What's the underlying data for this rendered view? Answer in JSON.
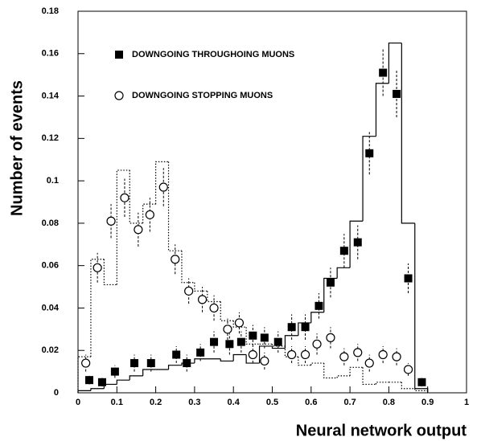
{
  "chart_data": {
    "type": "scatter",
    "x_label": "Neural network output",
    "y_label": "Number of events",
    "xlim": [
      0,
      1
    ],
    "ylim": [
      0,
      0.18
    ],
    "xticks": [
      0,
      0.1,
      0.2,
      0.3,
      0.4,
      0.5,
      0.6,
      0.7,
      0.8,
      0.9,
      1
    ],
    "yticks": [
      0,
      0.02,
      0.04,
      0.06,
      0.08,
      0.1,
      0.12,
      0.14,
      0.16,
      0.18
    ],
    "series": [
      {
        "name": "DOWNGOING THROUGHOING MUONS",
        "marker": "filled-square",
        "color": "#000000",
        "x": [
          0.029,
          0.062,
          0.095,
          0.145,
          0.188,
          0.253,
          0.28,
          0.315,
          0.35,
          0.39,
          0.42,
          0.45,
          0.48,
          0.515,
          0.55,
          0.585,
          0.62,
          0.65,
          0.685,
          0.72,
          0.75,
          0.785,
          0.82,
          0.85,
          0.885
        ],
        "values": [
          0.006,
          0.005,
          0.01,
          0.014,
          0.014,
          0.018,
          0.014,
          0.019,
          0.024,
          0.023,
          0.024,
          0.027,
          0.026,
          0.024,
          0.031,
          0.031,
          0.041,
          0.052,
          0.067,
          0.071,
          0.113,
          0.151,
          0.141,
          0.054,
          0.005
        ],
        "errors": [
          0.002,
          0.002,
          0.003,
          0.004,
          0.004,
          0.004,
          0.004,
          0.004,
          0.005,
          0.005,
          0.005,
          0.005,
          0.005,
          0.005,
          0.006,
          0.006,
          0.006,
          0.007,
          0.008,
          0.008,
          0.01,
          0.011,
          0.011,
          0.007,
          0.002
        ]
      },
      {
        "name": "DOWNGOING STOPPING MUONS",
        "marker": "open-circle",
        "color": "#000000",
        "x": [
          0.02,
          0.05,
          0.085,
          0.12,
          0.155,
          0.185,
          0.22,
          0.25,
          0.285,
          0.32,
          0.35,
          0.385,
          0.415,
          0.45,
          0.48,
          0.55,
          0.585,
          0.615,
          0.65,
          0.685,
          0.72,
          0.75,
          0.785,
          0.82,
          0.85
        ],
        "values": [
          0.014,
          0.059,
          0.081,
          0.092,
          0.077,
          0.084,
          0.097,
          0.063,
          0.048,
          0.044,
          0.04,
          0.03,
          0.033,
          0.018,
          0.015,
          0.018,
          0.018,
          0.023,
          0.026,
          0.017,
          0.019,
          0.014,
          0.018,
          0.017,
          0.011
        ],
        "errors": [
          0.004,
          0.007,
          0.008,
          0.009,
          0.008,
          0.008,
          0.009,
          0.007,
          0.006,
          0.006,
          0.006,
          0.005,
          0.005,
          0.004,
          0.004,
          0.004,
          0.004,
          0.005,
          0.005,
          0.004,
          0.004,
          0.004,
          0.004,
          0.004,
          0.003
        ]
      }
    ],
    "histograms": [
      {
        "style": "solid",
        "color": "#000000",
        "bins": [
          0,
          0.033,
          0.067,
          0.1,
          0.133,
          0.167,
          0.2,
          0.233,
          0.267,
          0.3,
          0.333,
          0.367,
          0.4,
          0.433,
          0.467,
          0.5,
          0.533,
          0.567,
          0.6,
          0.633,
          0.667,
          0.7,
          0.733,
          0.767,
          0.8,
          0.833,
          0.867,
          0.9
        ],
        "counts": [
          0.001,
          0.002,
          0.004,
          0.006,
          0.008,
          0.011,
          0.011,
          0.013,
          0.014,
          0.016,
          0.016,
          0.015,
          0.018,
          0.014,
          0.022,
          0.021,
          0.027,
          0.033,
          0.038,
          0.054,
          0.059,
          0.081,
          0.121,
          0.146,
          0.165,
          0.08,
          0.002
        ]
      },
      {
        "style": "dotted",
        "color": "#000000",
        "bins": [
          0,
          0.033,
          0.067,
          0.1,
          0.133,
          0.167,
          0.2,
          0.233,
          0.267,
          0.3,
          0.333,
          0.367,
          0.4,
          0.433,
          0.467,
          0.5,
          0.533,
          0.567,
          0.6,
          0.633,
          0.667,
          0.7,
          0.733,
          0.767,
          0.8,
          0.833,
          0.867,
          0.9
        ],
        "counts": [
          0.017,
          0.063,
          0.051,
          0.105,
          0.08,
          0.089,
          0.109,
          0.067,
          0.052,
          0.048,
          0.043,
          0.034,
          0.031,
          0.023,
          0.023,
          0.022,
          0.017,
          0.013,
          0.014,
          0.007,
          0.008,
          0.012,
          0.004,
          0.005,
          0.005,
          0.002,
          0.001
        ]
      }
    ]
  }
}
